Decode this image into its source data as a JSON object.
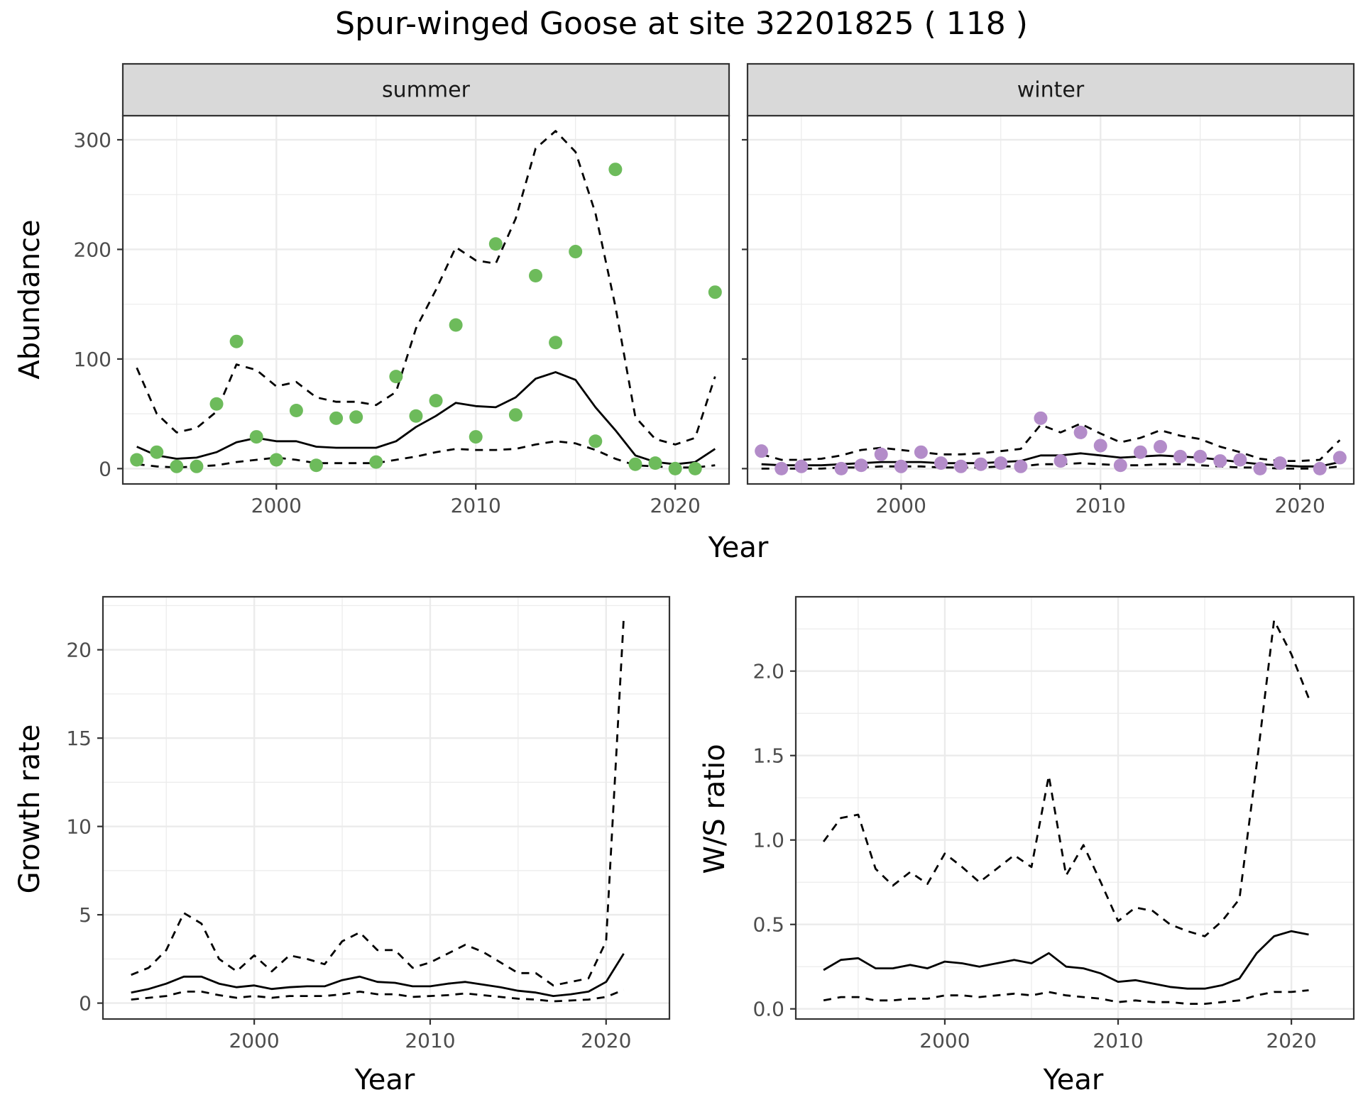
{
  "title": "Spur-winged Goose at site 32201825 ( 118 )",
  "colors": {
    "summer": "#6dbb5b",
    "winter": "#b38cc9",
    "line": "#000000",
    "strip_bg": "#d9d9d9",
    "grid": "#ebebeb"
  },
  "chart_data": [
    {
      "type": "line",
      "facet": "summer",
      "strip_label": "summer",
      "xlabel": "Year",
      "ylabel": "Abundance",
      "xlim": [
        1992.3,
        2022.7
      ],
      "ylim": [
        -14,
        322
      ],
      "x_ticks": [
        2000,
        2010,
        2020
      ],
      "y_ticks": [
        0,
        100,
        200,
        300
      ],
      "grid": true,
      "points": {
        "x": [
          1993,
          1994,
          1995,
          1996,
          1997,
          1998,
          1999,
          2000,
          2001,
          2002,
          2003,
          2004,
          2005,
          2006,
          2007,
          2008,
          2009,
          2010,
          2011,
          2012,
          2013,
          2014,
          2015,
          2016,
          2017,
          2018,
          2019,
          2020,
          2021,
          2022
        ],
        "y": [
          8,
          15,
          2,
          2,
          59,
          116,
          29,
          8,
          53,
          3,
          46,
          47,
          6,
          84,
          48,
          62,
          131,
          29,
          205,
          49,
          176,
          115,
          198,
          25,
          273,
          4,
          5,
          0,
          0,
          161
        ]
      },
      "series": [
        {
          "name": "",
          "style": "solid",
          "x": [
            1993,
            1994,
            1995,
            1996,
            1997,
            1998,
            1999,
            2000,
            2001,
            2002,
            2003,
            2004,
            2005,
            2006,
            2007,
            2008,
            2009,
            2010,
            2011,
            2012,
            2013,
            2014,
            2015,
            2016,
            2017,
            2018,
            2019,
            2020,
            2021,
            2022
          ],
          "values": [
            20,
            12,
            9,
            10,
            15,
            24,
            28,
            25,
            25,
            20,
            19,
            19,
            19,
            25,
            38,
            48,
            60,
            57,
            56,
            65,
            82,
            88,
            81,
            56,
            35,
            12,
            6,
            4,
            6,
            18
          ]
        },
        {
          "name": "",
          "style": "dashed",
          "x": [
            1993,
            1994,
            1995,
            1996,
            1997,
            1998,
            1999,
            2000,
            2001,
            2002,
            2003,
            2004,
            2005,
            2006,
            2007,
            2008,
            2009,
            2010,
            2011,
            2012,
            2013,
            2014,
            2015,
            2016,
            2017,
            2018,
            2019,
            2020,
            2021,
            2022
          ],
          "values": [
            92,
            50,
            33,
            37,
            52,
            95,
            90,
            75,
            79,
            65,
            61,
            61,
            58,
            70,
            128,
            163,
            202,
            190,
            187,
            228,
            292,
            308,
            289,
            233,
            148,
            47,
            27,
            22,
            28,
            84
          ]
        },
        {
          "name": "",
          "style": "dashed",
          "x": [
            1993,
            1994,
            1995,
            1996,
            1997,
            1998,
            1999,
            2000,
            2001,
            2002,
            2003,
            2004,
            2005,
            2006,
            2007,
            2008,
            2009,
            2010,
            2011,
            2012,
            2013,
            2014,
            2015,
            2016,
            2017,
            2018,
            2019,
            2020,
            2021,
            2022
          ],
          "values": [
            4,
            2,
            1,
            2,
            3,
            6,
            8,
            10,
            8,
            5,
            5,
            5,
            5,
            8,
            11,
            15,
            18,
            17,
            17,
            18,
            22,
            25,
            23,
            17,
            9,
            3,
            2,
            1,
            1,
            3
          ]
        }
      ]
    },
    {
      "type": "line",
      "facet": "winter",
      "strip_label": "winter",
      "xlabel": "Year",
      "ylabel": "Abundance",
      "xlim": [
        1992.3,
        2022.7
      ],
      "ylim": [
        -14,
        322
      ],
      "x_ticks": [
        2000,
        2010,
        2020
      ],
      "y_ticks": [
        0,
        100,
        200,
        300
      ],
      "grid": true,
      "points": {
        "x": [
          1993,
          1994,
          1995,
          1997,
          1998,
          1999,
          2000,
          2001,
          2002,
          2003,
          2004,
          2005,
          2006,
          2007,
          2008,
          2009,
          2010,
          2011,
          2012,
          2013,
          2014,
          2015,
          2016,
          2017,
          2018,
          2019,
          2021,
          2022
        ],
        "y": [
          16,
          0,
          2,
          0,
          3,
          13,
          2,
          15,
          5,
          2,
          4,
          5,
          2,
          46,
          7,
          33,
          21,
          3,
          15,
          20,
          11,
          11,
          7,
          8,
          0,
          5,
          0,
          10
        ]
      },
      "series": [
        {
          "name": "",
          "style": "solid",
          "x": [
            1993,
            1994,
            1995,
            1996,
            1997,
            1998,
            1999,
            2000,
            2001,
            2002,
            2003,
            2004,
            2005,
            2006,
            2007,
            2008,
            2009,
            2010,
            2011,
            2012,
            2013,
            2014,
            2015,
            2016,
            2017,
            2018,
            2019,
            2020,
            2021,
            2022
          ],
          "values": [
            4,
            3,
            3,
            3,
            4,
            5,
            6,
            6,
            6,
            5,
            5,
            5,
            6,
            7,
            12,
            12,
            14,
            12,
            10,
            11,
            12,
            11,
            10,
            8,
            6,
            4,
            3,
            2,
            2,
            6
          ]
        },
        {
          "name": "",
          "style": "dashed",
          "x": [
            1993,
            1994,
            1995,
            1996,
            1997,
            1998,
            1999,
            2000,
            2001,
            2002,
            2003,
            2004,
            2005,
            2006,
            2007,
            2008,
            2009,
            2010,
            2011,
            2012,
            2013,
            2014,
            2015,
            2016,
            2017,
            2018,
            2019,
            2020,
            2021,
            2022
          ],
          "values": [
            13,
            8,
            8,
            9,
            12,
            17,
            19,
            17,
            15,
            13,
            13,
            14,
            16,
            18,
            40,
            33,
            41,
            32,
            24,
            28,
            35,
            30,
            27,
            20,
            15,
            9,
            7,
            7,
            8,
            26
          ]
        },
        {
          "name": "",
          "style": "dashed",
          "x": [
            1993,
            1994,
            1995,
            1996,
            1997,
            1998,
            1999,
            2000,
            2001,
            2002,
            2003,
            2004,
            2005,
            2006,
            2007,
            2008,
            2009,
            2010,
            2011,
            2012,
            2013,
            2014,
            2015,
            2016,
            2017,
            2018,
            2019,
            2020,
            2021,
            2022
          ],
          "values": [
            0,
            0,
            0,
            0,
            1,
            1,
            2,
            2,
            2,
            1,
            1,
            1,
            2,
            2,
            4,
            4,
            5,
            4,
            3,
            3,
            4,
            4,
            3,
            2,
            1,
            1,
            0,
            0,
            0,
            2
          ]
        }
      ]
    },
    {
      "type": "line",
      "xlabel": "Year",
      "ylabel": "Growth rate",
      "xlim": [
        1991.4,
        2023.6
      ],
      "ylim": [
        -0.9,
        23.0
      ],
      "x_ticks": [
        2000,
        2010,
        2020
      ],
      "y_ticks": [
        0,
        5,
        10,
        15,
        20
      ],
      "grid": true,
      "series": [
        {
          "name": "",
          "style": "solid",
          "x": [
            1993,
            1994,
            1995,
            1996,
            1997,
            1998,
            1999,
            2000,
            2001,
            2002,
            2003,
            2004,
            2005,
            2006,
            2007,
            2008,
            2009,
            2010,
            2011,
            2012,
            2013,
            2014,
            2015,
            2016,
            2017,
            2018,
            2019,
            2020,
            2021
          ],
          "values": [
            0.6,
            0.8,
            1.1,
            1.5,
            1.5,
            1.1,
            0.9,
            1.0,
            0.8,
            0.9,
            0.95,
            0.95,
            1.3,
            1.5,
            1.2,
            1.15,
            0.95,
            0.95,
            1.1,
            1.2,
            1.05,
            0.9,
            0.7,
            0.6,
            0.4,
            0.5,
            0.65,
            1.2,
            2.8
          ]
        },
        {
          "name": "",
          "style": "dashed",
          "x": [
            1993,
            1994,
            1995,
            1996,
            1997,
            1998,
            1999,
            2000,
            2001,
            2002,
            2003,
            2004,
            2005,
            2006,
            2007,
            2008,
            2009,
            2010,
            2011,
            2012,
            2013,
            2014,
            2015,
            2016,
            2017,
            2018,
            2019,
            2020,
            2021
          ],
          "values": [
            1.6,
            2.0,
            3.0,
            5.1,
            4.5,
            2.5,
            1.8,
            2.7,
            1.8,
            2.7,
            2.5,
            2.2,
            3.5,
            4.0,
            3.0,
            3.0,
            2.0,
            2.3,
            2.8,
            3.3,
            2.9,
            2.3,
            1.7,
            1.7,
            1.0,
            1.2,
            1.4,
            3.5,
            21.8
          ]
        },
        {
          "name": "",
          "style": "dashed",
          "x": [
            1993,
            1994,
            1995,
            1996,
            1997,
            1998,
            1999,
            2000,
            2001,
            2002,
            2003,
            2004,
            2005,
            2006,
            2007,
            2008,
            2009,
            2010,
            2011,
            2012,
            2013,
            2014,
            2015,
            2016,
            2017,
            2018,
            2019,
            2020,
            2021
          ],
          "values": [
            0.2,
            0.3,
            0.4,
            0.65,
            0.65,
            0.45,
            0.3,
            0.4,
            0.3,
            0.4,
            0.4,
            0.4,
            0.5,
            0.65,
            0.5,
            0.5,
            0.35,
            0.4,
            0.45,
            0.55,
            0.45,
            0.35,
            0.25,
            0.2,
            0.1,
            0.15,
            0.2,
            0.35,
            0.75
          ]
        }
      ]
    },
    {
      "type": "line",
      "xlabel": "Year",
      "ylabel": "W/S ratio",
      "xlim": [
        1991.4,
        2023.6
      ],
      "ylim": [
        -0.06,
        2.44
      ],
      "x_ticks": [
        2000,
        2010,
        2020
      ],
      "y_ticks": [
        0.0,
        0.5,
        1.0,
        1.5,
        2.0
      ],
      "y_tick_labels": [
        "0.0",
        "0.5",
        "1.0",
        "1.5",
        "2.0"
      ],
      "grid": true,
      "series": [
        {
          "name": "",
          "style": "solid",
          "x": [
            1993,
            1994,
            1995,
            1996,
            1997,
            1998,
            1999,
            2000,
            2001,
            2002,
            2003,
            2004,
            2005,
            2006,
            2007,
            2008,
            2009,
            2010,
            2011,
            2012,
            2013,
            2014,
            2015,
            2016,
            2017,
            2018,
            2019,
            2020,
            2021
          ],
          "values": [
            0.23,
            0.29,
            0.3,
            0.24,
            0.24,
            0.26,
            0.24,
            0.28,
            0.27,
            0.25,
            0.27,
            0.29,
            0.27,
            0.33,
            0.25,
            0.24,
            0.21,
            0.16,
            0.17,
            0.15,
            0.13,
            0.12,
            0.12,
            0.14,
            0.18,
            0.33,
            0.43,
            0.46,
            0.44
          ]
        },
        {
          "name": "",
          "style": "dashed",
          "x": [
            1993,
            1994,
            1995,
            1996,
            1997,
            1998,
            1999,
            2000,
            2001,
            2002,
            2003,
            2004,
            2005,
            2006,
            2007,
            2008,
            2009,
            2010,
            2011,
            2012,
            2013,
            2014,
            2015,
            2016,
            2017,
            2018,
            2019,
            2020,
            2021
          ],
          "values": [
            0.99,
            1.13,
            1.15,
            0.83,
            0.73,
            0.81,
            0.74,
            0.92,
            0.84,
            0.75,
            0.83,
            0.91,
            0.84,
            1.38,
            0.79,
            0.97,
            0.75,
            0.52,
            0.6,
            0.58,
            0.5,
            0.46,
            0.43,
            0.52,
            0.65,
            1.45,
            2.3,
            2.1,
            1.84
          ]
        },
        {
          "name": "",
          "style": "dashed",
          "x": [
            1993,
            1994,
            1995,
            1996,
            1997,
            1998,
            1999,
            2000,
            2001,
            2002,
            2003,
            2004,
            2005,
            2006,
            2007,
            2008,
            2009,
            2010,
            2011,
            2012,
            2013,
            2014,
            2015,
            2016,
            2017,
            2018,
            2019,
            2020,
            2021
          ],
          "values": [
            0.05,
            0.07,
            0.07,
            0.05,
            0.05,
            0.06,
            0.06,
            0.08,
            0.08,
            0.07,
            0.08,
            0.09,
            0.08,
            0.1,
            0.08,
            0.07,
            0.06,
            0.04,
            0.05,
            0.04,
            0.04,
            0.03,
            0.03,
            0.04,
            0.05,
            0.08,
            0.1,
            0.1,
            0.11
          ]
        }
      ]
    }
  ]
}
